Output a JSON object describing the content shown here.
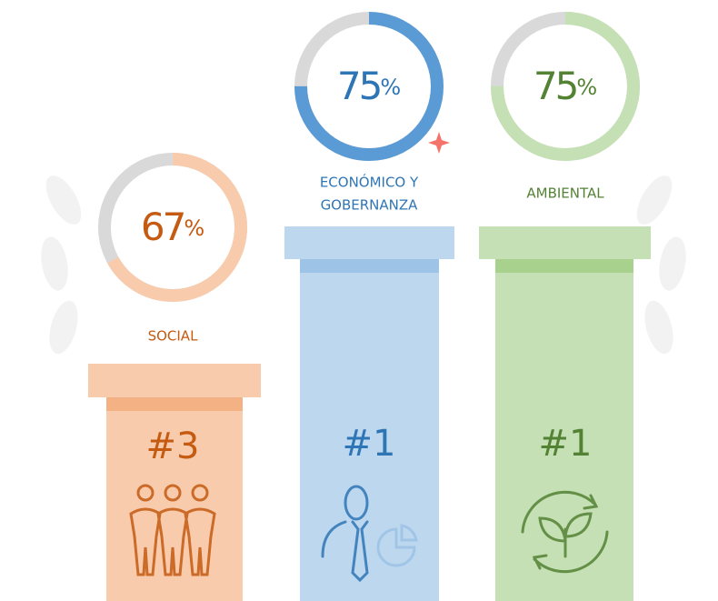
{
  "pillars": [
    {
      "label": [
        "SOCIAL"
      ],
      "percent": 67,
      "unit": "%",
      "rank": "#3"
    },
    {
      "label": [
        "ECONÓMICO Y",
        "GOBERNANZA"
      ],
      "percent": 75,
      "unit": "%",
      "rank": "#1"
    },
    {
      "label": [
        "AMBIENTAL"
      ],
      "percent": 75,
      "unit": "%",
      "rank": "#1"
    }
  ]
}
